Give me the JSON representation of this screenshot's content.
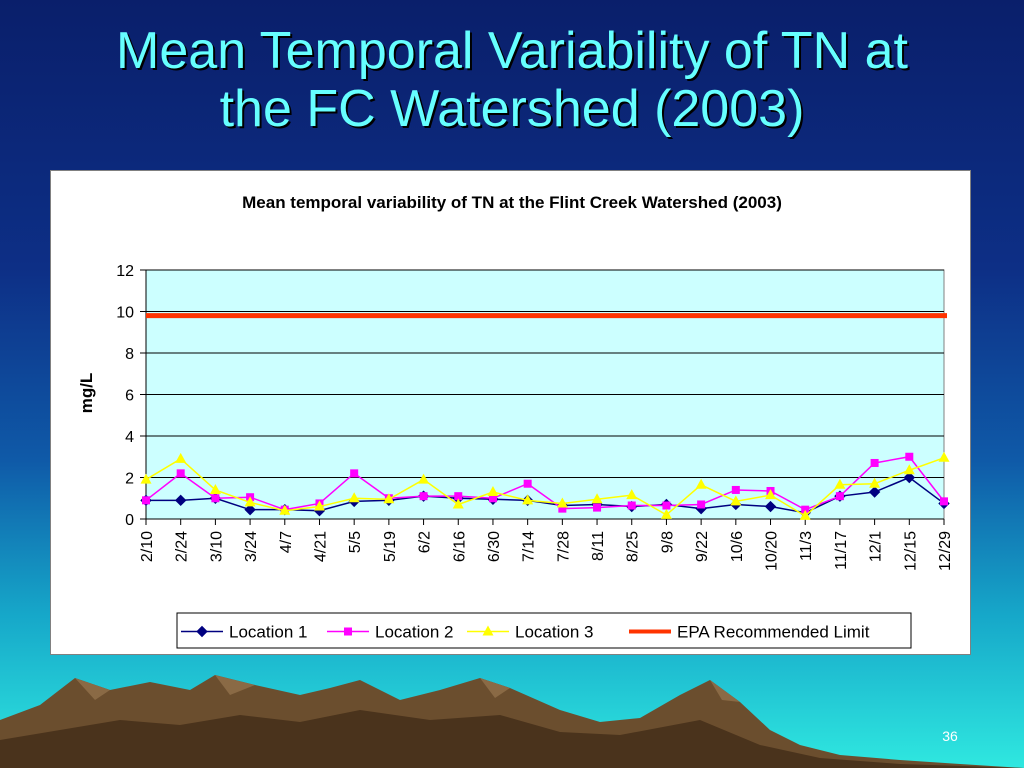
{
  "slide": {
    "title_line1": "Mean Temporal Variability of TN at",
    "title_line2": "the FC Watershed (2003)",
    "page_number": "36"
  },
  "colors": {
    "plot_bg": "#ccffff",
    "location1": "#000080",
    "location2": "#ff00ff",
    "location3": "#ffff00",
    "epa": "#ff3300"
  },
  "chart_data": {
    "type": "line",
    "title": "Mean temporal variability of TN at the Flint Creek Watershed (2003)",
    "xlabel": "",
    "ylabel": "mg/L",
    "ylim": [
      0,
      12
    ],
    "yticks": [
      "0",
      "2",
      "4",
      "6",
      "8",
      "10",
      "12"
    ],
    "grid": true,
    "legend_position": "bottom",
    "categories": [
      "2/10",
      "2/24",
      "3/10",
      "3/24",
      "4/7",
      "4/21",
      "5/5",
      "5/19",
      "6/2",
      "6/16",
      "6/30",
      "7/14",
      "7/28",
      "8/11",
      "8/25",
      "9/8",
      "9/22",
      "10/6",
      "10/20",
      "11/3",
      "11/17",
      "12/1",
      "12/15",
      "12/29"
    ],
    "series": [
      {
        "name": "Location 1",
        "marker": "diamond",
        "color": "#000080",
        "values": [
          0.9,
          0.9,
          1.0,
          0.45,
          0.45,
          0.4,
          0.85,
          0.9,
          1.1,
          1.0,
          0.95,
          0.9,
          0.65,
          0.7,
          0.6,
          0.7,
          0.5,
          0.7,
          0.6,
          0.3,
          1.1,
          1.3,
          2.0,
          0.75
        ]
      },
      {
        "name": "Location 2",
        "marker": "square",
        "color": "#ff00ff",
        "values": [
          0.9,
          2.2,
          1.0,
          1.05,
          0.45,
          0.75,
          2.2,
          1.0,
          1.1,
          1.1,
          1.0,
          1.7,
          0.5,
          0.55,
          0.65,
          0.65,
          0.7,
          1.4,
          1.35,
          0.45,
          1.1,
          2.7,
          3.0,
          0.85
        ]
      },
      {
        "name": "Location 3",
        "marker": "triangle",
        "color": "#ffff00",
        "values": [
          1.9,
          2.9,
          1.4,
          0.8,
          0.4,
          0.6,
          1.0,
          0.95,
          1.9,
          0.7,
          1.3,
          0.9,
          0.75,
          0.95,
          1.15,
          0.2,
          1.65,
          0.85,
          1.15,
          0.15,
          1.65,
          1.7,
          2.35,
          2.95
        ]
      }
    ],
    "reference_lines": [
      {
        "name": "EPA Recommended Limit",
        "value": 9.8,
        "color": "#ff3300"
      }
    ]
  }
}
